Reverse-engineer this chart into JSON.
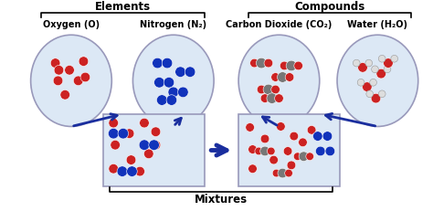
{
  "bg_color": "#ffffff",
  "circle_fill": "#dce8f5",
  "circle_edge": "#9999bb",
  "box_fill": "#dce8f5",
  "box_edge": "#9999bb",
  "red": "#cc2222",
  "blue": "#1133bb",
  "gray": "#777777",
  "white_atom": "#dddddd",
  "white_atom_edge": "#999999",
  "arrow_color": "#1a2e9e",
  "title_elements": "Elements",
  "title_compounds": "Compounds",
  "title_mixtures": "Mixtures",
  "label_oxygen": "Oxygen (O)",
  "label_nitrogen": "Nitrogen (N₂)",
  "label_co2": "Carbon Dioxide (CO₂)",
  "label_water": "Water (H₂O)"
}
